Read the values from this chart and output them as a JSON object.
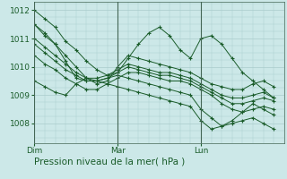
{
  "bg_color": "#cce8e8",
  "grid_color": "#aacccc",
  "line_color": "#1a5c2a",
  "marker_color": "#1a5c2a",
  "axis_label_color": "#1a5c2a",
  "tick_label_color": "#1a5c2a",
  "vline_color": "#446655",
  "xlabel": "Pression niveau de la mer( hPa )",
  "yticks": [
    1008,
    1009,
    1010,
    1011,
    1012
  ],
  "ylim": [
    1007.3,
    1012.3
  ],
  "xlim": [
    0,
    72
  ],
  "xtick_positions": [
    0,
    24,
    48
  ],
  "xtick_labels": [
    "Dim",
    "Mar",
    "Lun"
  ],
  "vline_positions": [
    0,
    24,
    48
  ],
  "series": [
    [
      1012.0,
      1011.7,
      1011.4,
      1010.9,
      1010.6,
      1010.2,
      1009.9,
      1009.7,
      1009.8,
      1010.3,
      1010.8,
      1011.2,
      1011.4,
      1011.1,
      1010.6,
      1010.3,
      1011.0,
      1011.1,
      1010.8,
      1010.3,
      1009.8,
      1009.5,
      1009.2,
      1008.9
    ],
    [
      1011.5,
      1011.1,
      1010.8,
      1010.4,
      1010.0,
      1009.6,
      1009.4,
      1009.5,
      1010.0,
      1010.4,
      1010.3,
      1010.2,
      1010.1,
      1010.0,
      1009.9,
      1009.8,
      1009.6,
      1009.4,
      1009.3,
      1009.2,
      1009.2,
      1009.4,
      1009.5,
      1009.3
    ],
    [
      1011.0,
      1010.7,
      1010.4,
      1010.1,
      1009.8,
      1009.6,
      1009.6,
      1009.7,
      1009.9,
      1010.1,
      1010.0,
      1009.9,
      1009.8,
      1009.8,
      1009.7,
      1009.6,
      1009.4,
      1009.2,
      1009.0,
      1008.9,
      1008.9,
      1009.0,
      1009.1,
      1008.9
    ],
    [
      1010.8,
      1010.5,
      1010.2,
      1009.9,
      1009.7,
      1009.5,
      1009.5,
      1009.6,
      1009.8,
      1010.0,
      1009.9,
      1009.8,
      1009.7,
      1009.7,
      1009.6,
      1009.5,
      1009.3,
      1009.1,
      1008.9,
      1008.7,
      1008.7,
      1008.8,
      1008.9,
      1008.8
    ],
    [
      1010.4,
      1010.1,
      1009.9,
      1009.6,
      1009.4,
      1009.2,
      1009.2,
      1009.4,
      1009.6,
      1009.8,
      1009.8,
      1009.7,
      1009.6,
      1009.5,
      1009.5,
      1009.4,
      1009.2,
      1009.0,
      1008.7,
      1008.5,
      1008.4,
      1008.5,
      1008.6,
      1008.5
    ],
    [
      1009.5,
      1009.3,
      1009.1,
      1009.0,
      1009.4,
      1009.6,
      1009.5,
      1009.4,
      1009.3,
      1009.2,
      1009.1,
      1009.0,
      1008.9,
      1008.8,
      1008.7,
      1008.6,
      1008.1,
      1007.8,
      1007.9,
      1008.1,
      1008.4,
      1008.7,
      1008.5,
      1008.3
    ],
    [
      1011.5,
      1011.2,
      1010.8,
      1010.2,
      1009.6,
      1009.5,
      1009.5,
      1009.6,
      1009.7,
      1009.6,
      1009.5,
      1009.4,
      1009.3,
      1009.2,
      1009.1,
      1009.0,
      1008.5,
      1008.2,
      1007.9,
      1008.0,
      1008.1,
      1008.2,
      1008.0,
      1007.8
    ]
  ],
  "n_points": 24,
  "time_step": 3,
  "xlabel_fontsize": 7.5,
  "tick_fontsize": 6.5
}
